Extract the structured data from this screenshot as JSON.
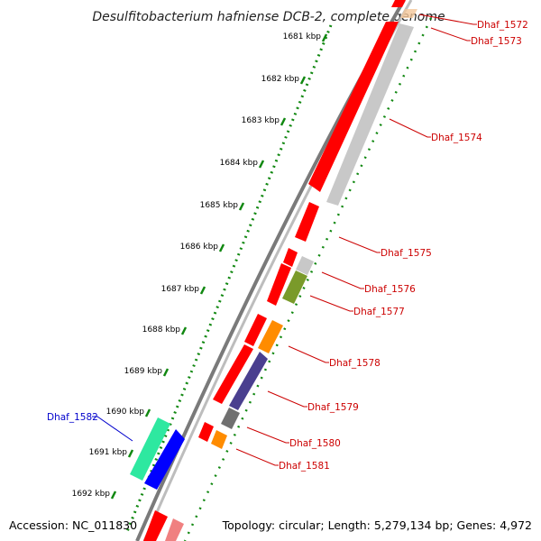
{
  "title": "Desulfitobacterium hafniense DCB-2, complete genome",
  "footer": {
    "accession": "Accession: NC_011830",
    "topology": "Topology: circular; Length: 5,279,134 bp; Genes: 4,972"
  },
  "ticks": [
    "1681 kbp",
    "1682 kbp",
    "1683 kbp",
    "1684 kbp",
    "1685 kbp",
    "1686 kbp",
    "1687 kbp",
    "1688 kbp",
    "1689 kbp",
    "1690 kbp",
    "1691 kbp",
    "1692 kbp"
  ],
  "genes": [
    {
      "id": "Dhaf_1572",
      "label": "Dhaf_1572",
      "color": "#cc0000"
    },
    {
      "id": "Dhaf_1573",
      "label": "Dhaf_1573",
      "color": "#cc0000"
    },
    {
      "id": "Dhaf_1574",
      "label": "Dhaf_1574",
      "color": "#cc0000"
    },
    {
      "id": "Dhaf_1575",
      "label": "Dhaf_1575",
      "color": "#cc0000"
    },
    {
      "id": "Dhaf_1576",
      "label": "Dhaf_1576",
      "color": "#cc0000"
    },
    {
      "id": "Dhaf_1577",
      "label": "Dhaf_1577",
      "color": "#cc0000"
    },
    {
      "id": "Dhaf_1578",
      "label": "Dhaf_1578",
      "color": "#cc0000"
    },
    {
      "id": "Dhaf_1579",
      "label": "Dhaf_1579",
      "color": "#cc0000"
    },
    {
      "id": "Dhaf_1580",
      "label": "Dhaf_1580",
      "color": "#cc0000"
    },
    {
      "id": "Dhaf_1581",
      "label": "Dhaf_1581",
      "color": "#cc0000"
    },
    {
      "id": "Dhaf_1582",
      "label": "Dhaf_1582",
      "color": "#0000cc"
    }
  ],
  "colors": {
    "red": "#ff0000",
    "gray": "#c8c8c8",
    "green": "#7a9a2a",
    "orange": "#ff8c00",
    "purple": "#4a3f8f",
    "dark_gray": "#707070",
    "teal": "#2ee8a0",
    "blue": "#0000ff",
    "pink": "#f08080",
    "tick_green": "#118811",
    "backbone": "#808080"
  }
}
